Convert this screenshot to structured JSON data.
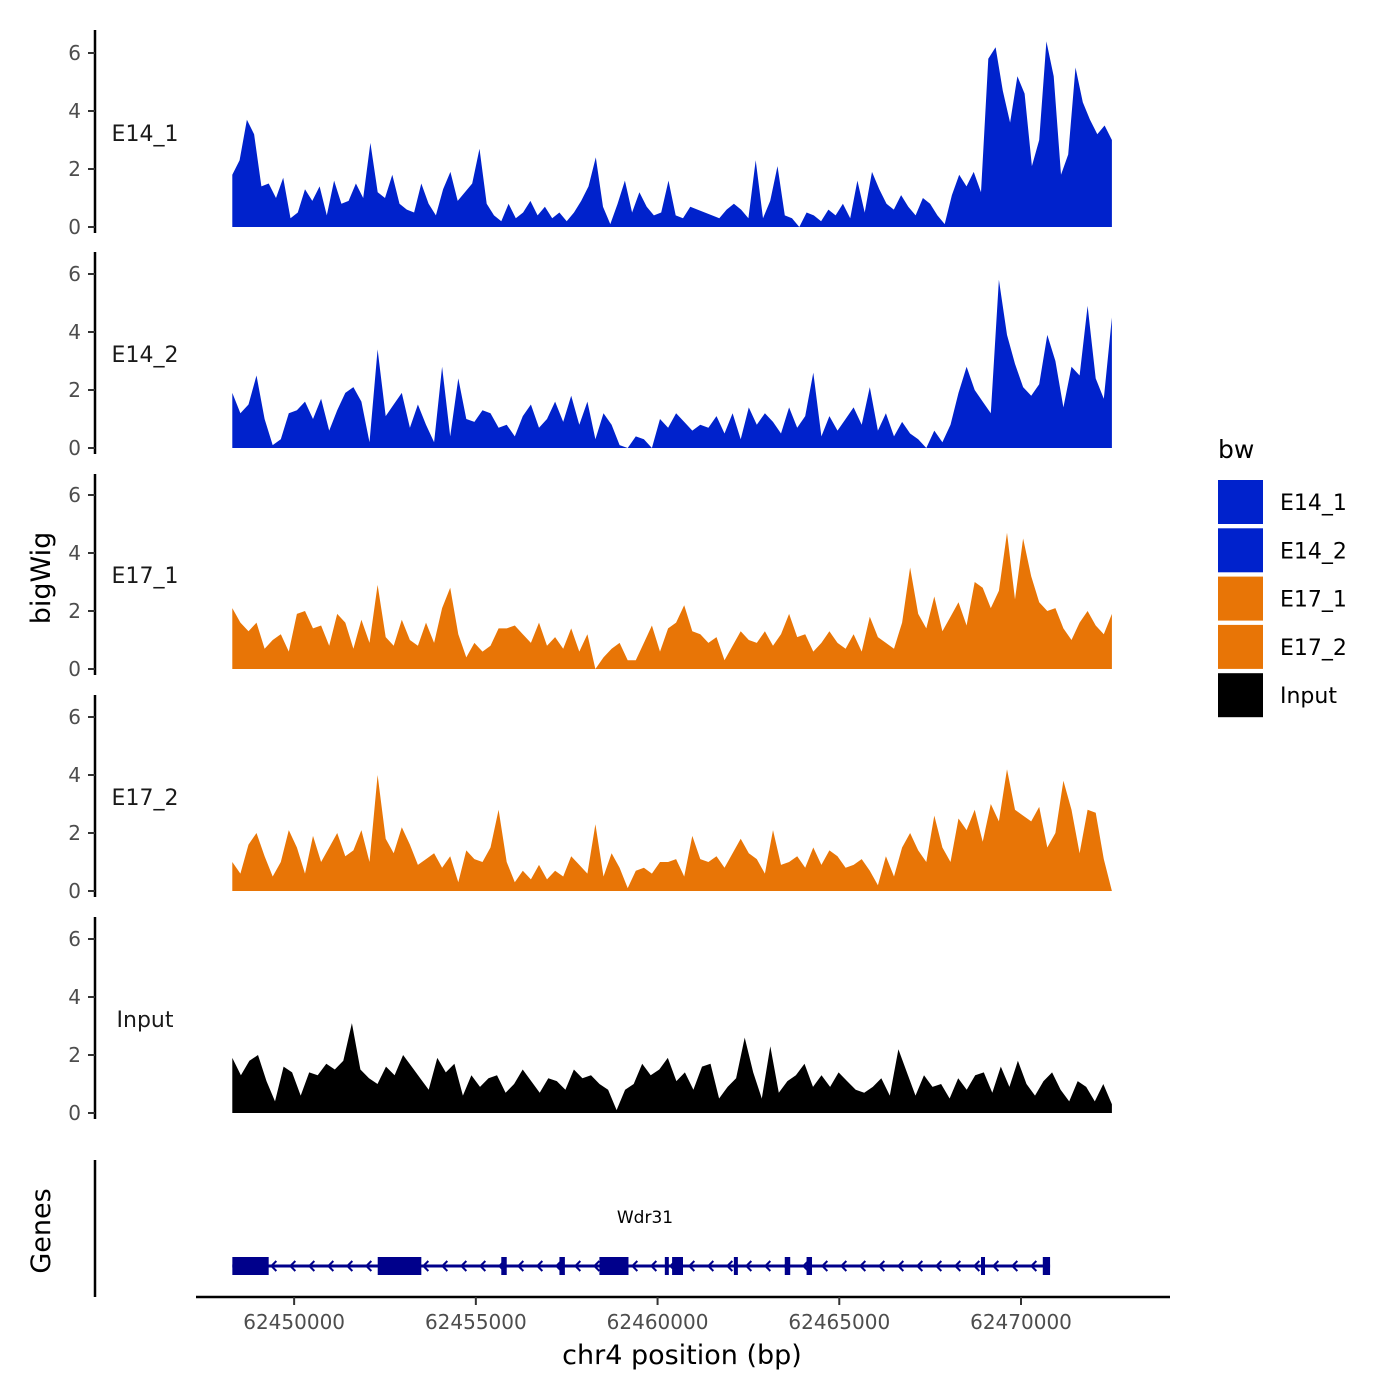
{
  "chart_data": {
    "type": "area",
    "ylabel": "bigWig",
    "xlabel": "chr4 position (bp)",
    "xlim": [
      62447300,
      62474100
    ],
    "data_range": [
      62448300,
      62472500
    ],
    "ylim": [
      0,
      6.7
    ],
    "yticks": [
      0,
      2,
      4,
      6
    ],
    "xticks": [
      62450000,
      62455000,
      62460000,
      62465000,
      62470000
    ],
    "xtick_labels": [
      "62450000",
      "62455000",
      "62460000",
      "62465000",
      "62470000"
    ],
    "legend": {
      "title": "bw",
      "position": "right",
      "entries": [
        {
          "label": "E14_1",
          "color": "#0022CC"
        },
        {
          "label": "E14_2",
          "color": "#0022CC"
        },
        {
          "label": "E17_1",
          "color": "#E87506"
        },
        {
          "label": "E17_2",
          "color": "#E87506"
        },
        {
          "label": "Input",
          "color": "#000000"
        }
      ]
    },
    "series": [
      {
        "name": "E14_1",
        "color": "#0022CC",
        "values": [
          1.8,
          2.3,
          3.7,
          3.2,
          1.4,
          1.5,
          1.0,
          1.7,
          0.3,
          0.5,
          1.3,
          0.9,
          1.4,
          0.4,
          1.6,
          0.8,
          0.9,
          1.5,
          1.0,
          2.9,
          1.2,
          1.0,
          1.8,
          0.8,
          0.6,
          0.5,
          1.5,
          0.8,
          0.4,
          1.3,
          1.9,
          0.9,
          1.2,
          1.5,
          2.7,
          0.8,
          0.4,
          0.2,
          0.8,
          0.3,
          0.5,
          0.9,
          0.4,
          0.7,
          0.3,
          0.5,
          0.2,
          0.5,
          0.9,
          1.4,
          2.4,
          0.7,
          0.1,
          0.8,
          1.6,
          0.5,
          1.2,
          0.7,
          0.4,
          0.5,
          1.6,
          0.4,
          0.3,
          0.7,
          0.6,
          0.5,
          0.4,
          0.3,
          0.6,
          0.8,
          0.6,
          0.3,
          2.3,
          0.3,
          0.9,
          2.1,
          0.4,
          0.3,
          0.0,
          0.5,
          0.4,
          0.2,
          0.6,
          0.4,
          0.8,
          0.3,
          1.6,
          0.5,
          1.9,
          1.3,
          0.8,
          0.6,
          1.1,
          0.7,
          0.4,
          1.0,
          0.8,
          0.4,
          0.1,
          1.1,
          1.8,
          1.4,
          1.9,
          1.2,
          5.8,
          6.2,
          4.7,
          3.6,
          5.2,
          4.6,
          2.1,
          3.0,
          6.4,
          5.2,
          1.8,
          2.5,
          5.5,
          4.3,
          3.7,
          3.2,
          3.5,
          3.0
        ]
      },
      {
        "name": "E14_2",
        "color": "#0022CC",
        "values": [
          1.9,
          1.2,
          1.5,
          2.5,
          1.0,
          0.1,
          0.3,
          1.2,
          1.3,
          1.6,
          1.0,
          1.7,
          0.6,
          1.3,
          1.9,
          2.1,
          1.6,
          0.2,
          3.4,
          1.1,
          1.5,
          1.9,
          0.7,
          1.5,
          0.8,
          0.2,
          2.8,
          0.4,
          2.4,
          1.0,
          0.9,
          1.3,
          1.2,
          0.7,
          0.8,
          0.4,
          1.1,
          1.5,
          0.7,
          1.0,
          1.6,
          0.9,
          1.8,
          0.8,
          1.6,
          0.3,
          1.2,
          0.8,
          0.1,
          0.0,
          0.4,
          0.3,
          0.0,
          1.0,
          0.7,
          1.2,
          0.9,
          0.6,
          0.8,
          0.7,
          1.1,
          0.5,
          1.2,
          0.3,
          1.4,
          0.8,
          1.2,
          0.9,
          0.5,
          1.4,
          0.7,
          1.1,
          2.6,
          0.4,
          1.1,
          0.6,
          1.0,
          1.4,
          0.8,
          2.1,
          0.6,
          1.2,
          0.4,
          0.9,
          0.5,
          0.3,
          0.0,
          0.6,
          0.2,
          0.8,
          1.9,
          2.8,
          2.0,
          1.6,
          1.2,
          5.8,
          3.9,
          2.9,
          2.1,
          1.8,
          2.2,
          3.9,
          3.0,
          1.4,
          2.8,
          2.5,
          4.9,
          2.4,
          1.7,
          4.5
        ]
      },
      {
        "name": "E17_1",
        "color": "#E87506",
        "values": [
          2.1,
          1.6,
          1.3,
          1.6,
          0.7,
          1.0,
          1.2,
          0.6,
          1.9,
          2.0,
          1.4,
          1.5,
          0.8,
          1.9,
          1.6,
          0.7,
          1.7,
          0.9,
          2.9,
          1.1,
          0.8,
          1.7,
          1.0,
          0.8,
          1.6,
          0.9,
          2.1,
          2.8,
          1.2,
          0.4,
          0.9,
          0.6,
          0.8,
          1.4,
          1.4,
          1.5,
          1.2,
          0.9,
          1.6,
          0.8,
          1.1,
          0.7,
          1.4,
          0.6,
          1.2,
          0.0,
          0.4,
          0.7,
          0.9,
          0.3,
          0.3,
          0.9,
          1.5,
          0.6,
          1.4,
          1.6,
          2.2,
          1.3,
          1.2,
          0.9,
          1.1,
          0.3,
          0.8,
          1.3,
          1.0,
          0.9,
          1.3,
          0.8,
          1.2,
          1.9,
          1.1,
          1.2,
          0.6,
          0.9,
          1.3,
          0.9,
          0.7,
          1.2,
          0.6,
          1.8,
          1.1,
          0.9,
          0.7,
          1.6,
          3.5,
          1.9,
          1.4,
          2.5,
          1.3,
          1.8,
          2.3,
          1.5,
          3.0,
          2.8,
          2.1,
          2.7,
          4.7,
          2.4,
          4.5,
          3.2,
          2.3,
          2.0,
          2.1,
          1.4,
          1.0,
          1.6,
          2.0,
          1.5,
          1.2,
          1.9
        ]
      },
      {
        "name": "E17_2",
        "color": "#E87506",
        "values": [
          1.0,
          0.6,
          1.6,
          2.0,
          1.2,
          0.5,
          1.0,
          2.1,
          1.5,
          0.6,
          1.9,
          1.0,
          1.5,
          2.0,
          1.2,
          1.4,
          2.1,
          1.0,
          4.0,
          1.8,
          1.3,
          2.2,
          1.6,
          0.9,
          1.1,
          1.3,
          0.8,
          1.2,
          0.3,
          1.4,
          1.1,
          1.0,
          1.5,
          2.8,
          1.0,
          0.3,
          0.7,
          0.4,
          0.9,
          0.4,
          0.7,
          0.5,
          1.2,
          0.9,
          0.6,
          2.3,
          0.5,
          1.3,
          0.8,
          0.1,
          0.7,
          0.8,
          0.6,
          1.0,
          1.0,
          1.1,
          0.5,
          1.9,
          1.1,
          1.0,
          1.2,
          0.8,
          1.3,
          1.8,
          1.3,
          1.1,
          0.6,
          2.1,
          0.9,
          1.0,
          1.2,
          0.8,
          1.5,
          0.9,
          1.4,
          1.2,
          0.8,
          0.9,
          1.1,
          0.7,
          0.2,
          1.2,
          0.5,
          1.5,
          2.0,
          1.4,
          1.0,
          2.6,
          1.5,
          1.0,
          2.5,
          2.1,
          2.8,
          1.7,
          3.0,
          2.4,
          4.2,
          2.8,
          2.6,
          2.4,
          2.9,
          1.5,
          2.0,
          3.8,
          2.8,
          1.3,
          2.8,
          2.7,
          1.1,
          0.0
        ]
      },
      {
        "name": "Input",
        "color": "#000000",
        "values": [
          1.9,
          1.3,
          1.8,
          2.0,
          1.1,
          0.4,
          1.6,
          1.4,
          0.6,
          1.4,
          1.3,
          1.7,
          1.5,
          1.8,
          3.1,
          1.5,
          1.2,
          1.0,
          1.6,
          1.3,
          2.0,
          1.6,
          1.2,
          0.8,
          1.9,
          1.4,
          1.7,
          0.6,
          1.3,
          0.9,
          1.2,
          1.3,
          0.7,
          1.0,
          1.5,
          1.1,
          0.7,
          1.2,
          1.1,
          0.8,
          1.5,
          1.2,
          1.3,
          1.0,
          0.8,
          0.1,
          0.8,
          1.0,
          1.7,
          1.3,
          1.5,
          1.9,
          1.1,
          1.4,
          0.8,
          1.6,
          1.7,
          0.5,
          0.9,
          1.2,
          2.6,
          1.4,
          0.5,
          2.3,
          0.7,
          1.1,
          1.3,
          1.7,
          0.9,
          1.3,
          0.9,
          1.4,
          1.1,
          0.8,
          0.7,
          0.9,
          1.2,
          0.6,
          2.2,
          1.4,
          0.6,
          1.3,
          0.9,
          1.0,
          0.5,
          1.2,
          0.8,
          1.3,
          1.4,
          0.7,
          1.6,
          0.9,
          1.8,
          1.0,
          0.6,
          1.1,
          1.4,
          0.8,
          0.4,
          1.1,
          0.9,
          0.4,
          1.0,
          0.3
        ]
      }
    ],
    "genes": {
      "panel_label": "Genes",
      "name": "Wdr31",
      "strand": "-",
      "start": 62448300,
      "end": 62470800,
      "exons": [
        {
          "start": 62448300,
          "end": 62449300
        },
        {
          "start": 62452300,
          "end": 62453500
        },
        {
          "start": 62455700,
          "end": 62455850
        },
        {
          "start": 62457300,
          "end": 62457450
        },
        {
          "start": 62458400,
          "end": 62459200
        },
        {
          "start": 62460200,
          "end": 62460300
        },
        {
          "start": 62460400,
          "end": 62460700
        },
        {
          "start": 62462100,
          "end": 62462200
        },
        {
          "start": 62463500,
          "end": 62463650
        },
        {
          "start": 62464100,
          "end": 62464250
        },
        {
          "start": 62468900,
          "end": 62469000
        },
        {
          "start": 62470600,
          "end": 62470800
        }
      ]
    }
  }
}
